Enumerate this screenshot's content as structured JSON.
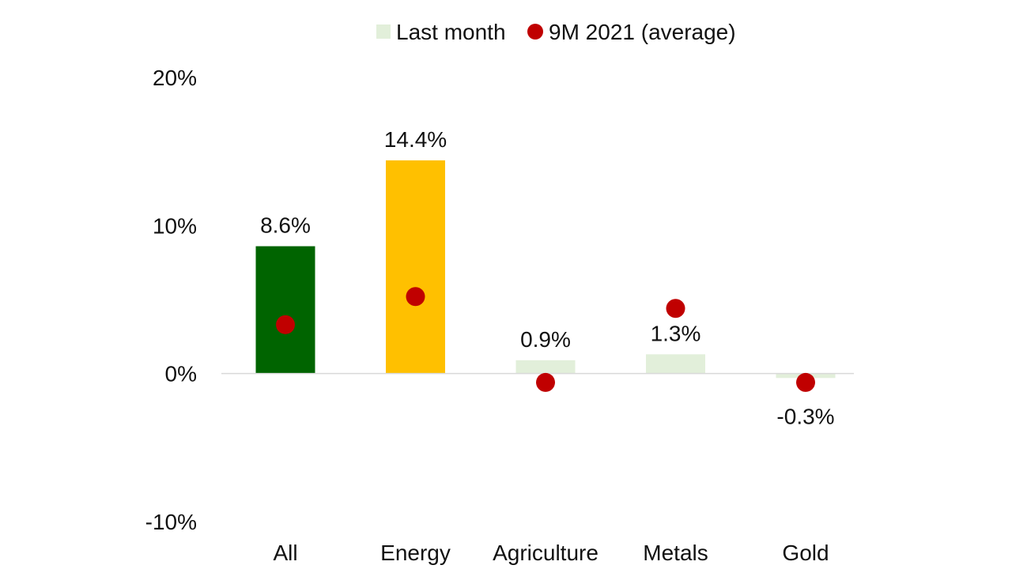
{
  "chart_data": {
    "type": "bar",
    "categories": [
      "All",
      "Energy",
      "Agriculture",
      "Metals",
      "Gold"
    ],
    "series": [
      {
        "name": "Last month",
        "kind": "bar",
        "values": [
          8.6,
          14.4,
          0.9,
          1.3,
          -0.3
        ],
        "data_labels": [
          "8.6%",
          "14.4%",
          "0.9%",
          "1.3%",
          "-0.3%"
        ],
        "colors": [
          "#006400",
          "#FFC000",
          "#E2EFDA",
          "#E2EFDA",
          "#E2EFDA"
        ]
      },
      {
        "name": "9M 2021 (average)",
        "kind": "marker",
        "values": [
          3.3,
          5.2,
          -0.6,
          4.4,
          -0.6
        ],
        "color": "#C00000"
      }
    ],
    "yticks": [
      20,
      10,
      0,
      -10
    ],
    "ytick_labels": [
      "20%",
      "10%",
      "0%",
      "-10%"
    ],
    "ylim": [
      -10,
      20
    ],
    "title": "",
    "xlabel": "",
    "ylabel": "",
    "grid": false,
    "legend_position": "top-center",
    "legend_swatch_color": "#E2EFDA"
  }
}
